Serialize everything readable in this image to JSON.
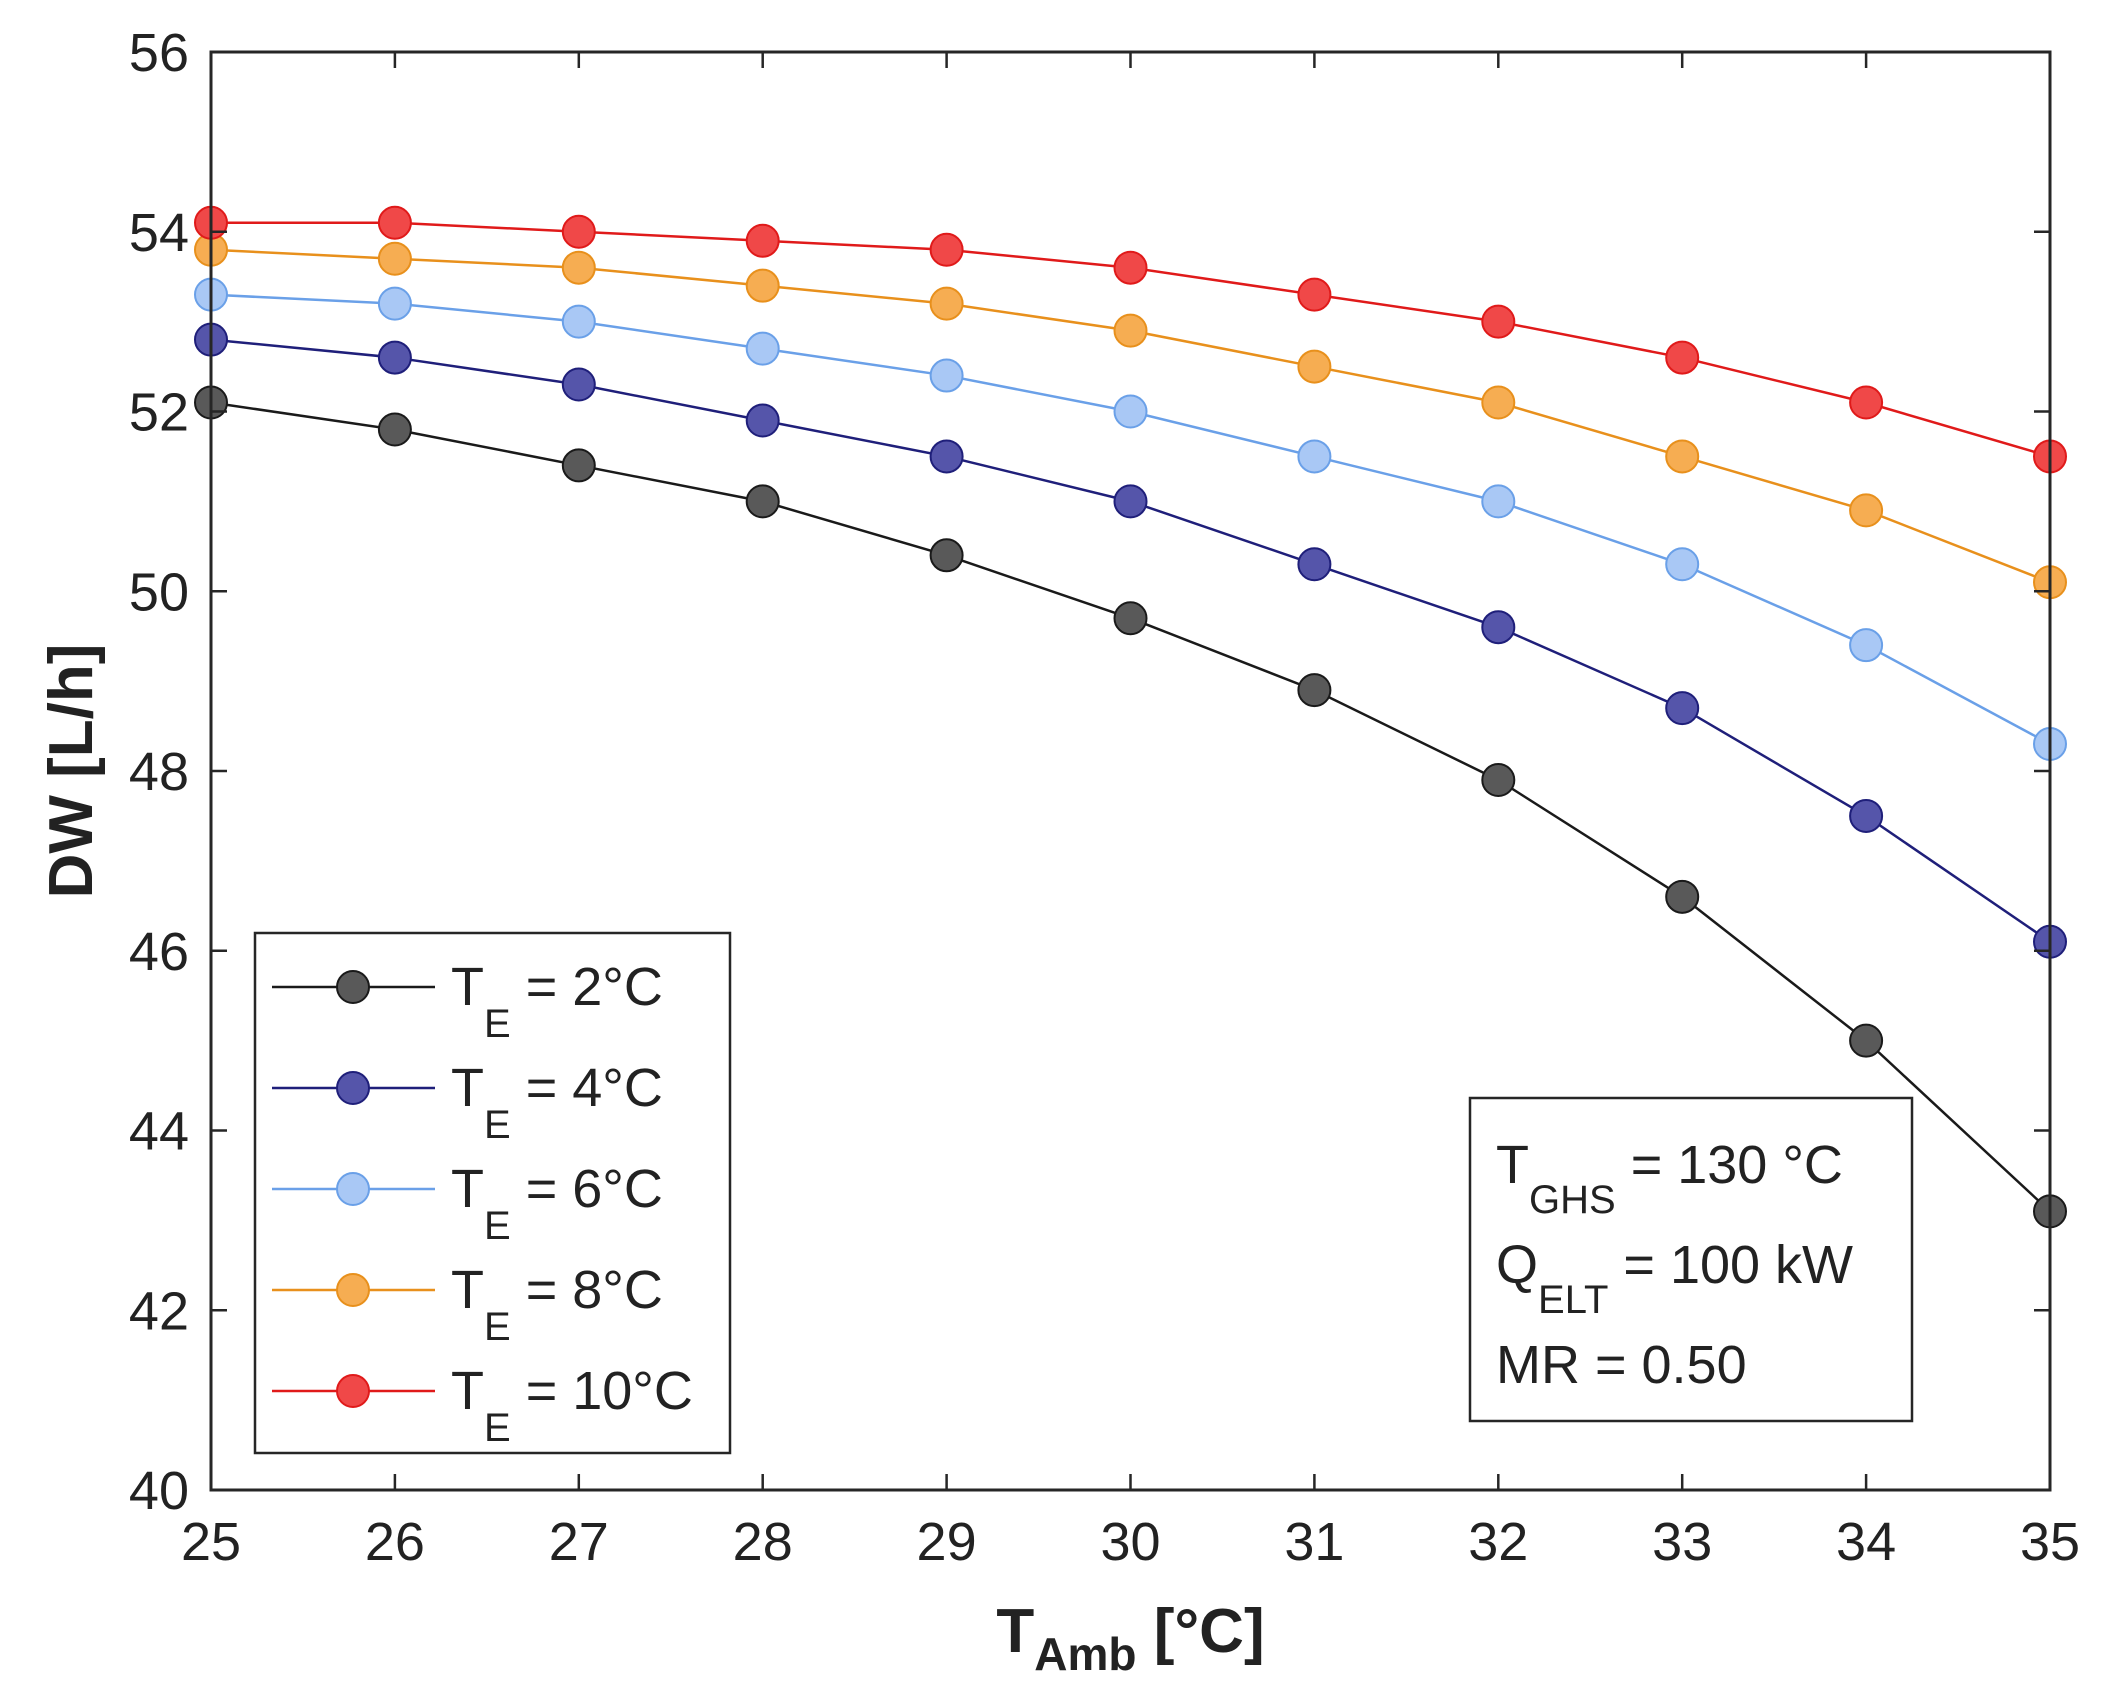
{
  "chart_data": {
    "type": "line",
    "title": "",
    "xlabel": {
      "main": "T",
      "sub": "Amb",
      "unit": " [°C]"
    },
    "ylabel": "DW [L/h]",
    "xlim": [
      25,
      35
    ],
    "ylim": [
      40,
      56
    ],
    "x": [
      25,
      26,
      27,
      28,
      29,
      30,
      31,
      32,
      33,
      34,
      35
    ],
    "xticks": [
      "25",
      "26",
      "27",
      "28",
      "29",
      "30",
      "31",
      "32",
      "33",
      "34",
      "35"
    ],
    "yticks": [
      "40",
      "42",
      "44",
      "46",
      "48",
      "50",
      "52",
      "54",
      "56"
    ],
    "grid": false,
    "legend_position": "bottom-left",
    "series": [
      {
        "name": "T_E = 2°C",
        "main": "T",
        "sub": "E",
        "suffix": " = 2°C",
        "line_color": "#1a1a1a",
        "marker_color": "#595959",
        "values": [
          52.1,
          51.8,
          51.4,
          51.0,
          50.4,
          49.7,
          48.9,
          47.9,
          46.6,
          45.0,
          43.1
        ]
      },
      {
        "name": "T_E = 4°C",
        "main": "T",
        "sub": "E",
        "suffix": " = 4°C",
        "line_color": "#1f1f7a",
        "marker_color": "#5555aa",
        "values": [
          52.8,
          52.6,
          52.3,
          51.9,
          51.5,
          51.0,
          50.3,
          49.6,
          48.7,
          47.5,
          46.1
        ]
      },
      {
        "name": "T_E = 6°C",
        "main": "T",
        "sub": "E",
        "suffix": " = 6°C",
        "line_color": "#6aa0e8",
        "marker_color": "#a9c8f5",
        "values": [
          53.3,
          53.2,
          53.0,
          52.7,
          52.4,
          52.0,
          51.5,
          51.0,
          50.3,
          49.4,
          48.3
        ]
      },
      {
        "name": "T_E = 8°C",
        "main": "T",
        "sub": "E",
        "suffix": " = 8°C",
        "line_color": "#e8901c",
        "marker_color": "#f6ad52",
        "values": [
          53.8,
          53.7,
          53.6,
          53.4,
          53.2,
          52.9,
          52.5,
          52.1,
          51.5,
          50.9,
          50.1
        ]
      },
      {
        "name": "T_E = 10°C",
        "main": "T",
        "sub": "E",
        "suffix": " = 10°C",
        "line_color": "#e01a1a",
        "marker_color": "#f04848",
        "values": [
          54.1,
          54.1,
          54.0,
          53.9,
          53.8,
          53.6,
          53.3,
          53.0,
          52.6,
          52.1,
          51.5
        ]
      }
    ],
    "annotation": [
      {
        "main": "T",
        "sub": "GHS",
        "suffix": " = 130 °C"
      },
      {
        "main": "Q",
        "sub": "ELT",
        "suffix": " = 100 kW"
      },
      {
        "main": "MR = 0.50",
        "sub": "",
        "suffix": ""
      }
    ]
  }
}
